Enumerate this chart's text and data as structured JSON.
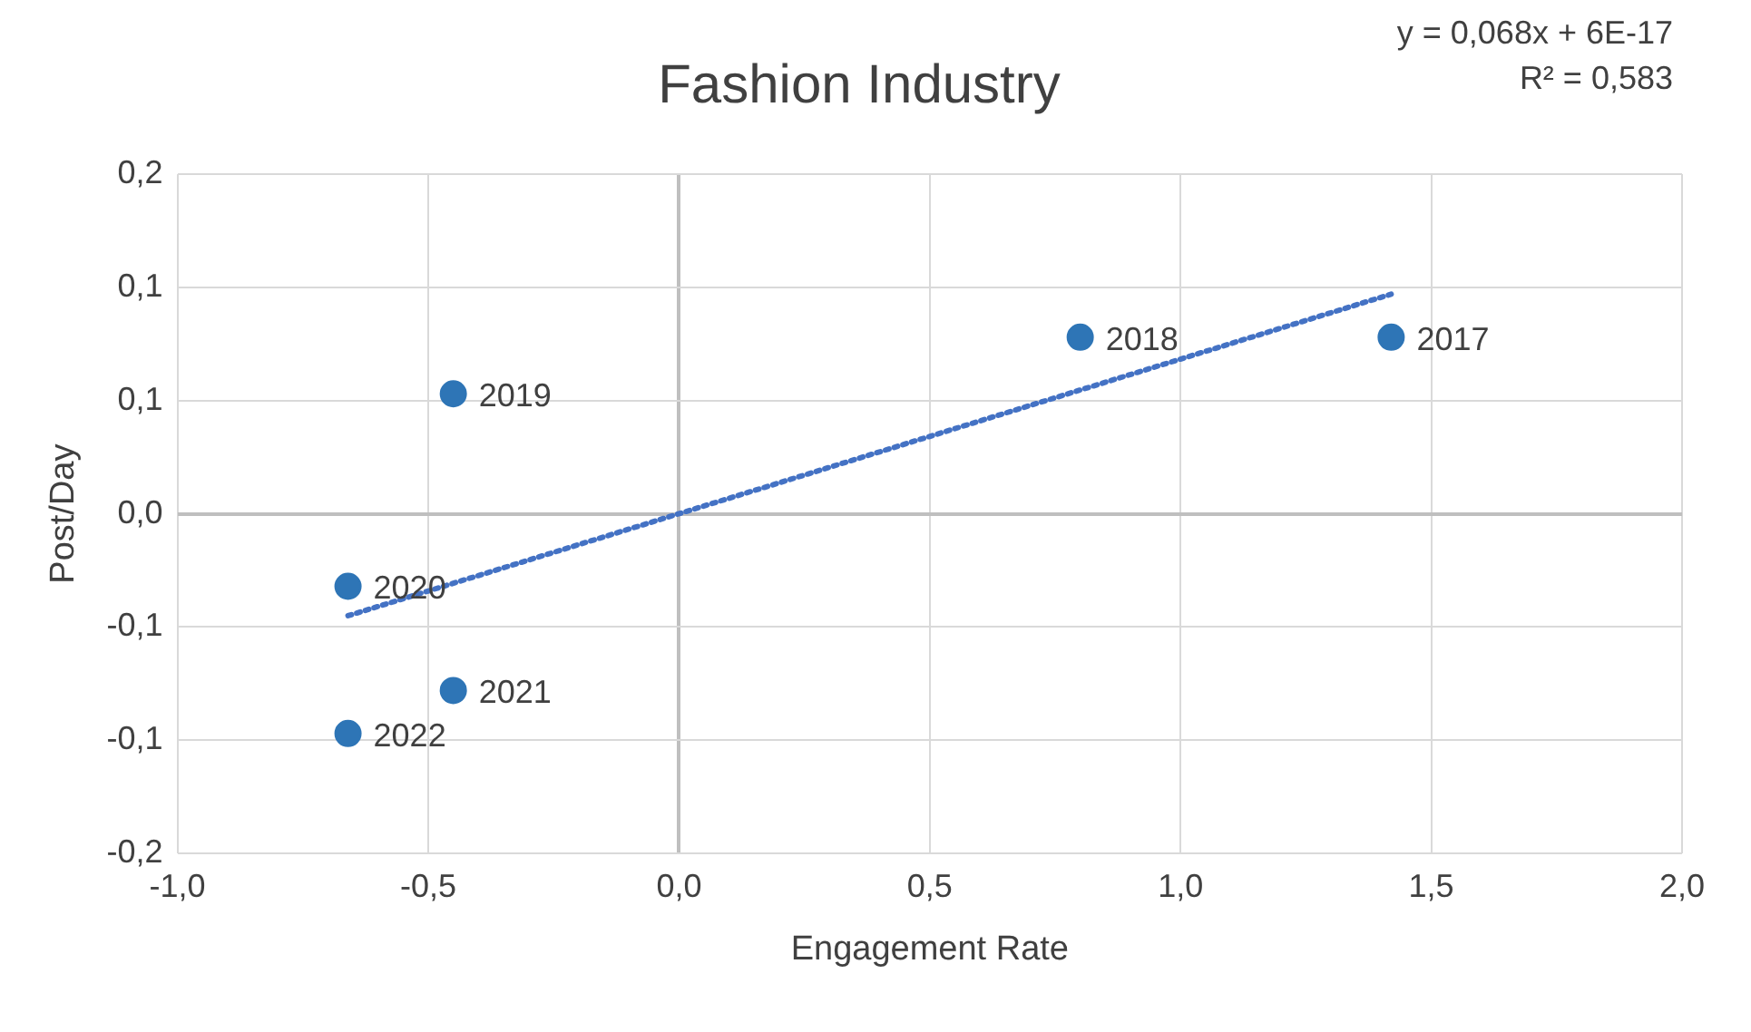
{
  "chart_data": {
    "type": "scatter",
    "title": "Fashion Industry",
    "xlabel": "Engagement Rate",
    "ylabel": "Post/Day",
    "grid": true,
    "marker": "circle",
    "xlim": [
      -1,
      2
    ],
    "xticks": [
      {
        "value": -1,
        "label": "-1,0"
      },
      {
        "value": -0.5,
        "label": "-0,5"
      },
      {
        "value": 0,
        "label": "0,0"
      },
      {
        "value": 0.5,
        "label": "0,5"
      },
      {
        "value": 1,
        "label": "1,0"
      },
      {
        "value": 1.5,
        "label": "1,5"
      },
      {
        "value": 2,
        "label": "2,0"
      }
    ],
    "ylim": [
      -0.15,
      0.15
    ],
    "yticks": [
      {
        "value": -0.15,
        "label": "-0,2"
      },
      {
        "value": -0.1,
        "label": "-0,1"
      },
      {
        "value": -0.05,
        "label": "-0,1"
      },
      {
        "value": 0,
        "label": "0,0"
      },
      {
        "value": 0.05,
        "label": "0,1"
      },
      {
        "value": 0.1,
        "label": "0,1"
      },
      {
        "value": 0.15,
        "label": "0,2"
      }
    ],
    "series": [
      {
        "color": "#2e75b6",
        "x": [
          1.42,
          0.8,
          -0.45,
          -0.66,
          -0.45,
          -0.66
        ],
        "values": [
          0.078,
          0.078,
          0.053,
          -0.032,
          -0.078,
          -0.097
        ]
      },
      {
        "type": "line",
        "color": "#4472c4",
        "line_style": "dotted",
        "marker": "none",
        "x": [
          -0.66,
          1.42
        ],
        "values": [
          -0.045,
          0.097
        ]
      }
    ],
    "annotations": [
      "y = 0,068x + 6E-17",
      "R² = 0,583",
      {
        "text": "2017",
        "x": 1.42,
        "y": 0.078
      },
      {
        "text": "2018",
        "x": 0.8,
        "y": 0.078
      },
      {
        "text": "2019",
        "x": -0.45,
        "y": 0.053
      },
      {
        "text": "2020",
        "x": -0.66,
        "y": -0.032
      },
      {
        "text": "2021",
        "x": -0.45,
        "y": -0.078
      },
      {
        "text": "2022",
        "x": -0.66,
        "y": -0.097
      }
    ]
  }
}
